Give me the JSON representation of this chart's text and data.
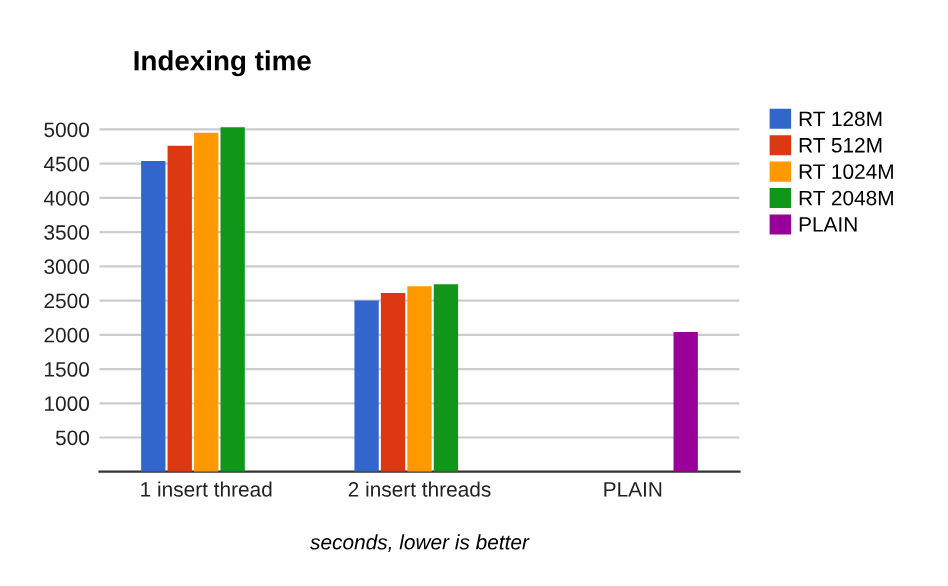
{
  "chart_data": {
    "type": "bar",
    "title": "Indexing time",
    "xlabel": "seconds, lower is better",
    "categories": [
      "1 insert thread",
      "2 insert threads",
      "PLAIN"
    ],
    "series": [
      {
        "name": "RT 128M",
        "color": "#3366cc",
        "values": [
          4540,
          2500,
          null
        ]
      },
      {
        "name": "RT 512M",
        "color": "#dc3912",
        "values": [
          4760,
          2610,
          null
        ]
      },
      {
        "name": "RT 1024M",
        "color": "#ff9900",
        "values": [
          4950,
          2710,
          null
        ]
      },
      {
        "name": "RT 2048M",
        "color": "#109618",
        "values": [
          5030,
          2740,
          null
        ]
      },
      {
        "name": "PLAIN",
        "color": "#990099",
        "values": [
          null,
          null,
          2040
        ]
      }
    ],
    "ylim": [
      0,
      5050
    ],
    "yticks": [
      500,
      1000,
      1500,
      2000,
      2500,
      3000,
      3500,
      4000,
      4500,
      5000
    ],
    "grid": "y",
    "legend": "right"
  }
}
